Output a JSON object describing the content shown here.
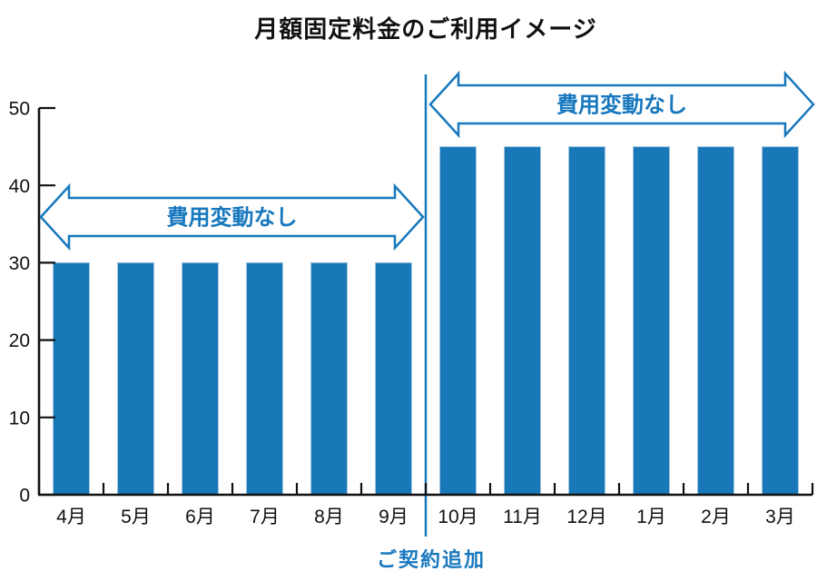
{
  "chart_data": {
    "type": "bar",
    "title": "月額固定料金のご利用イメージ",
    "categories": [
      "4月",
      "5月",
      "6月",
      "7月",
      "8月",
      "9月",
      "10月",
      "11月",
      "12月",
      "1月",
      "2月",
      "3月"
    ],
    "values": [
      30,
      30,
      30,
      30,
      30,
      30,
      45,
      45,
      45,
      45,
      45,
      45
    ],
    "xlabel": "",
    "ylabel": "",
    "ylim": [
      0,
      50
    ],
    "yticks": [
      0,
      10,
      20,
      30,
      40,
      50
    ],
    "grid": false,
    "legend": null,
    "annotations": {
      "left_arrow_label": "費用変動なし",
      "right_arrow_label": "費用変動なし",
      "separator_label": "ご契約追加",
      "separator_after_category": "9月",
      "separator_after_index": 5
    },
    "colors": {
      "bar": "#1878b8",
      "bar_edge": "#a3c6e0",
      "accent_blue": "#1878be",
      "axis": "#111111",
      "text": "#111111",
      "background": "#ffffff"
    }
  }
}
